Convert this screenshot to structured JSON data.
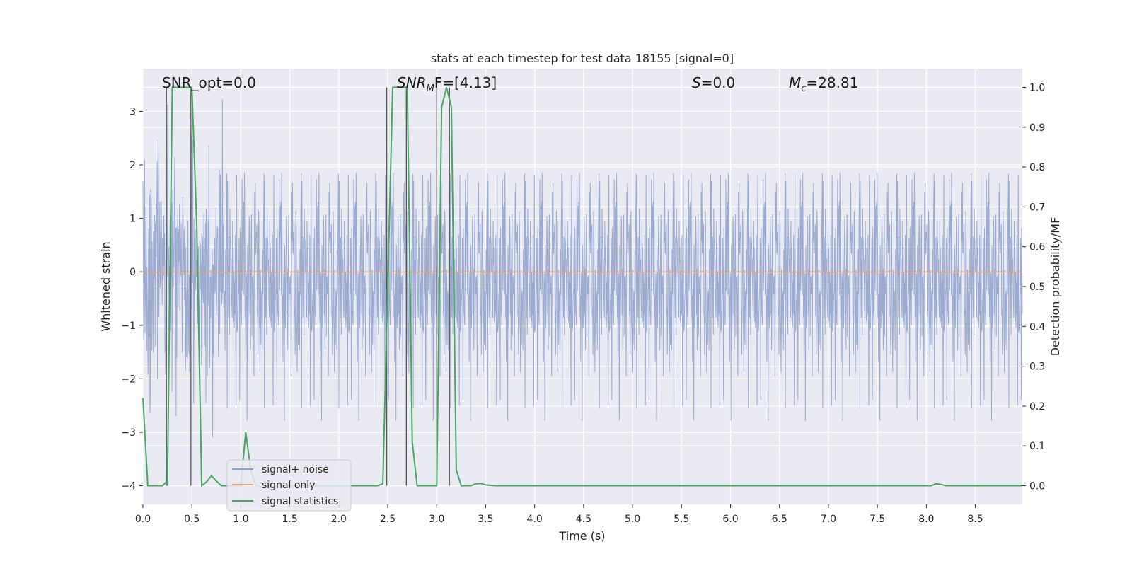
{
  "chart_data": {
    "type": "line",
    "title": "stats at each timestep for test data 18155 [signal=0]",
    "xlabel": "Time (s)",
    "ylabel": "Whitened strain",
    "y2label": "Detection probability/MF",
    "xlim": [
      0.0,
      8.98
    ],
    "ylim": [
      -4.35,
      3.8
    ],
    "y2lim": [
      -0.047,
      1.047
    ],
    "xticks": [
      "0.0",
      "0.5",
      "1.0",
      "1.5",
      "2.0",
      "2.5",
      "3.0",
      "3.5",
      "4.0",
      "4.5",
      "5.0",
      "5.5",
      "6.0",
      "6.5",
      "7.0",
      "7.5",
      "8.0",
      "8.5"
    ],
    "yticks": [
      "3",
      "2",
      "1",
      "0",
      "−1",
      "−2",
      "−3",
      "−4"
    ],
    "y2ticks": [
      "1.0",
      "0.9",
      "0.8",
      "0.7",
      "0.6",
      "0.5",
      "0.4",
      "0.3",
      "0.2",
      "0.1",
      "0.0"
    ],
    "grid": true,
    "legend_position": "lower-left",
    "annotations": [
      {
        "text": "SNR_opt=0.0",
        "x": 0.2
      },
      {
        "text_parts": [
          "SNR",
          "M",
          "F=[4.13]"
        ],
        "x": 2.6
      },
      {
        "text_parts": [
          "S",
          "=0.0"
        ],
        "x": 5.65
      },
      {
        "text_parts": [
          "M",
          "c",
          "=28.81"
        ],
        "x": 6.65
      }
    ],
    "vertical_lines_x": [
      0.24,
      0.49,
      2.49,
      2.69,
      3.0,
      3.13
    ],
    "series": [
      {
        "name": "signal+ noise",
        "color": "#8da0cb",
        "kind": "noise",
        "envelope_typical": 2.0,
        "envelope_peak": 3.4,
        "envelope_trough": -4.0
      },
      {
        "name": "signal only",
        "color": "#e8a27c",
        "kind": "flat",
        "value": 0.0
      },
      {
        "name": "signal statistics",
        "color": "#4aa564",
        "kind": "line",
        "axis": "right",
        "x": [
          0.0,
          0.05,
          0.1,
          0.15,
          0.2,
          0.24,
          0.25,
          0.3,
          0.35,
          0.4,
          0.45,
          0.5,
          0.55,
          0.6,
          0.65,
          0.7,
          0.75,
          0.8,
          0.85,
          0.9,
          0.95,
          1.0,
          1.05,
          1.1,
          1.15,
          1.2,
          1.3,
          1.5,
          2.0,
          2.4,
          2.45,
          2.5,
          2.55,
          2.6,
          2.65,
          2.7,
          2.75,
          2.8,
          2.85,
          2.9,
          2.95,
          3.0,
          3.05,
          3.1,
          3.15,
          3.2,
          3.25,
          3.3,
          3.35,
          3.4,
          3.45,
          3.5,
          3.6,
          4.0,
          5.0,
          6.0,
          7.0,
          8.0,
          8.05,
          8.1,
          8.15,
          8.2,
          8.3,
          8.5,
          8.98
        ],
        "values": [
          0.22,
          0.0,
          0.0,
          0.0,
          0.0,
          0.01,
          0.0,
          1.0,
          1.0,
          1.0,
          1.0,
          1.0,
          0.65,
          0.0,
          0.01,
          0.025,
          0.012,
          0.0,
          0.0,
          0.0,
          0.0,
          0.0,
          0.135,
          0.04,
          0.0,
          0.0,
          0.0,
          0.0,
          0.0,
          0.0,
          0.005,
          0.5,
          1.0,
          1.0,
          1.0,
          1.0,
          0.11,
          0.0,
          0.0,
          0.0,
          0.0,
          0.0,
          0.95,
          1.0,
          0.95,
          0.04,
          0.0,
          0.0,
          0.0,
          0.005,
          0.006,
          0.002,
          0.0,
          0.0,
          0.0,
          0.0,
          0.0,
          0.0,
          0.0,
          0.005,
          0.003,
          0.0,
          0.0,
          0.0,
          0.0
        ]
      }
    ]
  }
}
